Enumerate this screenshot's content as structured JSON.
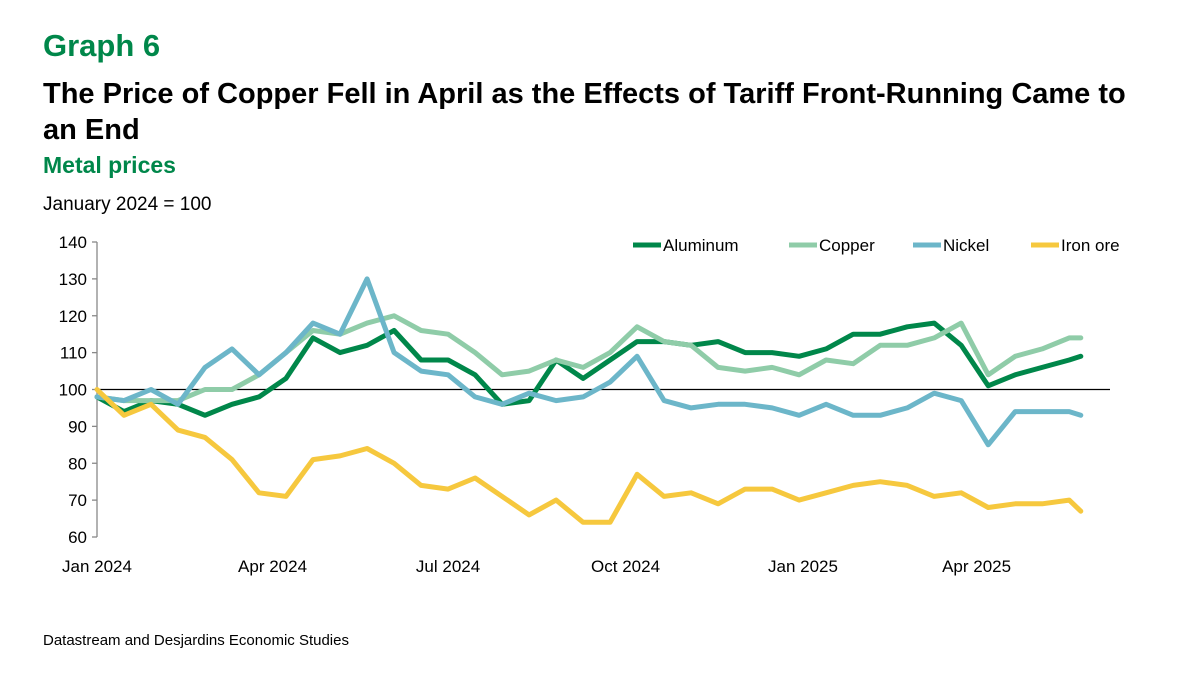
{
  "header": {
    "graph_label": "Graph 6",
    "title": "The Price of Copper Fell in April as the Effects of Tariff Front-Running Came to an End",
    "subtitle": "Metal prices",
    "unit_note": "January 2024 = 100"
  },
  "footer": {
    "source": "Datastream and Desjardins Economic Studies"
  },
  "chart_data": {
    "type": "line",
    "title": "Metal prices",
    "ylabel": "January 2024 = 100",
    "ylim": [
      60,
      140
    ],
    "yticks": [
      60,
      70,
      80,
      90,
      100,
      110,
      120,
      130,
      140
    ],
    "reference_line": 100,
    "xlim": [
      "2024-01-01",
      "2025-06-01"
    ],
    "xticks": [
      {
        "date": "2024-01-01",
        "label": "Jan 2024"
      },
      {
        "date": "2024-04-01",
        "label": "Apr 2024"
      },
      {
        "date": "2024-07-01",
        "label": "Jul 2024"
      },
      {
        "date": "2024-10-01",
        "label": "Oct 2024"
      },
      {
        "date": "2025-01-01",
        "label": "Jan 2025"
      },
      {
        "date": "2025-04-01",
        "label": "Apr 2025"
      }
    ],
    "grid": false,
    "legend_placement": "top-right",
    "x": [
      "2024-01-01",
      "2024-01-15",
      "2024-01-29",
      "2024-02-12",
      "2024-02-26",
      "2024-03-11",
      "2024-03-25",
      "2024-04-08",
      "2024-04-22",
      "2024-05-06",
      "2024-05-20",
      "2024-06-03",
      "2024-06-17",
      "2024-07-01",
      "2024-07-15",
      "2024-07-29",
      "2024-08-12",
      "2024-08-26",
      "2024-09-09",
      "2024-09-23",
      "2024-10-07",
      "2024-10-21",
      "2024-11-04",
      "2024-11-18",
      "2024-12-02",
      "2024-12-16",
      "2024-12-30",
      "2025-01-13",
      "2025-01-27",
      "2025-02-10",
      "2025-02-24",
      "2025-03-10",
      "2025-03-24",
      "2025-04-07",
      "2025-04-21",
      "2025-05-05",
      "2025-05-19",
      "2025-05-25"
    ],
    "series": [
      {
        "name": "Aluminum",
        "color": "#00874a",
        "values": [
          98,
          94,
          97,
          96,
          93,
          96,
          98,
          103,
          114,
          110,
          112,
          116,
          108,
          108,
          104,
          96,
          97,
          108,
          103,
          108,
          113,
          113,
          112,
          113,
          110,
          110,
          109,
          111,
          115,
          115,
          117,
          118,
          112,
          101,
          104,
          106,
          108,
          109
        ]
      },
      {
        "name": "Copper",
        "color": "#8fcca8",
        "values": [
          98,
          97,
          97,
          97,
          100,
          100,
          104,
          110,
          116,
          115,
          118,
          120,
          116,
          115,
          110,
          104,
          105,
          108,
          106,
          110,
          117,
          113,
          112,
          106,
          105,
          106,
          104,
          108,
          107,
          112,
          112,
          114,
          118,
          104,
          109,
          111,
          114,
          114
        ]
      },
      {
        "name": "Nickel",
        "color": "#6cb6c9",
        "values": [
          98,
          97,
          100,
          96,
          106,
          111,
          104,
          110,
          118,
          115,
          130,
          110,
          105,
          104,
          98,
          96,
          99,
          97,
          98,
          102,
          109,
          97,
          95,
          96,
          96,
          95,
          93,
          96,
          93,
          93,
          95,
          99,
          97,
          85,
          94,
          94,
          94,
          93
        ]
      },
      {
        "name": "Iron ore",
        "color": "#f6c83e",
        "values": [
          100,
          93,
          96,
          89,
          87,
          81,
          72,
          71,
          81,
          82,
          84,
          80,
          74,
          73,
          76,
          71,
          66,
          70,
          64,
          64,
          77,
          71,
          72,
          69,
          73,
          73,
          70,
          72,
          74,
          75,
          74,
          71,
          72,
          68,
          69,
          69,
          70,
          67
        ]
      }
    ]
  }
}
